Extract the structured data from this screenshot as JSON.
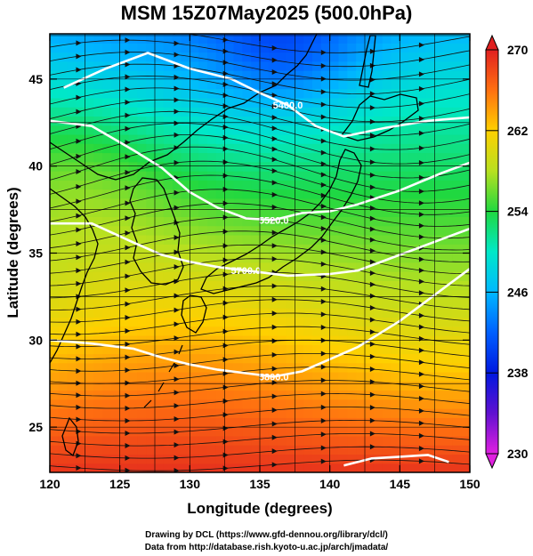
{
  "title": "MSM 15Z07May2025 (500.0hPa)",
  "x_axis": {
    "label": "Longitude (degrees)",
    "range": [
      120,
      150
    ],
    "ticks": [
      120,
      125,
      130,
      135,
      140,
      145,
      150
    ]
  },
  "y_axis": {
    "label": "Latitude  (degrees)",
    "range": [
      22.4,
      47.6
    ],
    "ticks": [
      25,
      30,
      35,
      40,
      45
    ]
  },
  "colorbar": {
    "range": [
      230,
      270
    ],
    "ticks": [
      230,
      238,
      246,
      254,
      262,
      270
    ]
  },
  "contours": [
    {
      "label": "5400.0",
      "points": [
        [
          121,
          44.5
        ],
        [
          124,
          45.6
        ],
        [
          127,
          46.5
        ],
        [
          130,
          45.6
        ],
        [
          133,
          45.0
        ],
        [
          135,
          44.2
        ],
        [
          137,
          43.5
        ],
        [
          139,
          42.3
        ],
        [
          141,
          41.7
        ],
        [
          144,
          42.2
        ],
        [
          147,
          42.6
        ],
        [
          150,
          42.8
        ]
      ]
    },
    {
      "label": "5520.0",
      "points": [
        [
          120,
          42.6
        ],
        [
          123,
          42.3
        ],
        [
          126,
          40.9
        ],
        [
          128,
          39.9
        ],
        [
          130,
          38.5
        ],
        [
          132,
          37.6
        ],
        [
          134,
          37.0
        ],
        [
          136,
          36.9
        ],
        [
          138,
          37.3
        ],
        [
          140,
          37.4
        ],
        [
          142,
          37.8
        ],
        [
          145,
          38.6
        ],
        [
          148,
          39.6
        ],
        [
          150,
          40.2
        ]
      ]
    },
    {
      "label": "5700.0",
      "points": [
        [
          120,
          36.7
        ],
        [
          123,
          36.7
        ],
        [
          126,
          35.6
        ],
        [
          128,
          34.9
        ],
        [
          130,
          34.5
        ],
        [
          132,
          34.2
        ],
        [
          134,
          34.0
        ],
        [
          137,
          33.7
        ],
        [
          140,
          33.8
        ],
        [
          142,
          34.0
        ],
        [
          145,
          34.9
        ],
        [
          148,
          35.8
        ],
        [
          150,
          36.4
        ]
      ]
    },
    {
      "label": "5800.0",
      "points": [
        [
          120,
          30.0
        ],
        [
          123,
          29.8
        ],
        [
          126,
          29.5
        ],
        [
          128,
          29.0
        ],
        [
          130,
          28.6
        ],
        [
          132,
          28.3
        ],
        [
          134,
          28.1
        ],
        [
          136,
          27.9
        ],
        [
          138,
          28.2
        ],
        [
          140,
          28.9
        ],
        [
          142,
          29.6
        ],
        [
          145,
          31.1
        ],
        [
          148,
          32.9
        ],
        [
          150,
          34.1
        ]
      ]
    },
    {
      "label": "",
      "points": [
        [
          141,
          22.8
        ],
        [
          143,
          23.2
        ],
        [
          145,
          23.3
        ],
        [
          147,
          23.4
        ],
        [
          148.5,
          23.0
        ]
      ]
    }
  ],
  "credits": {
    "line1": "Drawing by DCL (https://www.gfd-dennou.org/library/dcl/)",
    "line2": "Data from http://database.rish.kyoto-u.ac.jp/arch/jmadata/"
  }
}
